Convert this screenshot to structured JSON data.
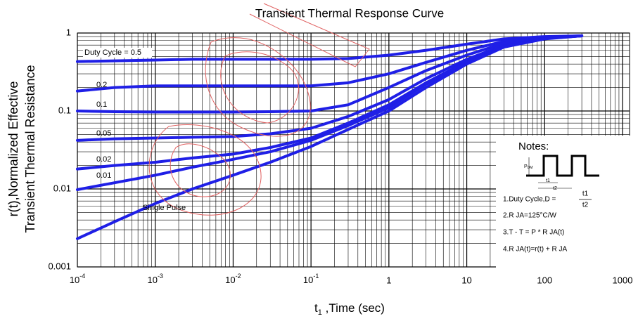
{
  "chart_data": {
    "type": "line",
    "title": "Transient Thermal Response Curve",
    "ylabel": [
      "r(t),Normalized Effective",
      "Transient Thermal Resistance"
    ],
    "xlabel": {
      "main": "t",
      "subscript": "1",
      "rest": " ,Time (sec)"
    },
    "log_x": true,
    "log_y": true,
    "grid": true,
    "minor_grid": true,
    "xlim": [
      0.0001,
      1000
    ],
    "ylim": [
      0.001,
      1
    ],
    "xticks": [
      {
        "value": 0.0001,
        "label": "10",
        "exponent": "-4"
      },
      {
        "value": 0.001,
        "label": "10",
        "exponent": "-3"
      },
      {
        "value": 0.01,
        "label": "10",
        "exponent": "-2"
      },
      {
        "value": 0.1,
        "label": "10",
        "exponent": "-1"
      },
      1,
      10,
      100,
      1000
    ],
    "yticks": [
      0.001,
      0.01,
      0.1,
      1
    ],
    "x": [
      0.0001,
      0.0003,
      0.001,
      0.003,
      0.01,
      0.03,
      0.1,
      0.3,
      1,
      3,
      10,
      30,
      100,
      300
    ],
    "series": [
      {
        "name": "Duty Cycle = 0.5",
        "color": "#1f1fe6",
        "values": [
          0.43,
          0.44,
          0.45,
          0.46,
          0.46,
          0.46,
          0.46,
          0.47,
          0.52,
          0.6,
          0.72,
          0.84,
          0.9,
          0.92
        ]
      },
      {
        "name": "0.2",
        "color": "#1f1fe6",
        "values": [
          0.18,
          0.2,
          0.21,
          0.21,
          0.21,
          0.21,
          0.21,
          0.23,
          0.3,
          0.42,
          0.6,
          0.78,
          0.88,
          0.92
        ]
      },
      {
        "name": "0.1",
        "color": "#1f1fe6",
        "values": [
          0.1,
          0.098,
          0.097,
          0.097,
          0.097,
          0.098,
          0.1,
          0.12,
          0.2,
          0.33,
          0.52,
          0.74,
          0.87,
          0.92
        ]
      },
      {
        "name": "0.05",
        "color": "#1f1fe6",
        "values": [
          0.042,
          0.044,
          0.045,
          0.046,
          0.047,
          0.051,
          0.06,
          0.085,
          0.14,
          0.26,
          0.46,
          0.7,
          0.86,
          0.92
        ]
      },
      {
        "name": "0.02",
        "color": "#1f1fe6",
        "values": [
          0.018,
          0.02,
          0.022,
          0.025,
          0.028,
          0.034,
          0.045,
          0.07,
          0.12,
          0.23,
          0.43,
          0.68,
          0.85,
          0.92
        ]
      },
      {
        "name": "0.01",
        "color": "#1f1fe6",
        "values": [
          0.0098,
          0.012,
          0.015,
          0.019,
          0.024,
          0.03,
          0.042,
          0.065,
          0.11,
          0.22,
          0.42,
          0.67,
          0.85,
          0.92
        ]
      },
      {
        "name": "Single Pulse",
        "color": "#1f1fe6",
        "values": [
          0.0023,
          0.0038,
          0.0065,
          0.01,
          0.015,
          0.022,
          0.035,
          0.058,
          0.1,
          0.2,
          0.4,
          0.66,
          0.84,
          0.92
        ]
      }
    ],
    "notes": {
      "title": "Notes:",
      "pdm": "P",
      "pdm_sub": "DM",
      "t1": "t1",
      "t2": "t2",
      "line1": "1.Duty Cycle,D =",
      "frac_num": "t1",
      "frac_den": "t2",
      "line2": "2.R  JA=125°C/W",
      "line3": "3.T  -  T  = P * R  JA(t)",
      "line4": "4.R  JA(t)=r(t) + R  JA"
    }
  }
}
